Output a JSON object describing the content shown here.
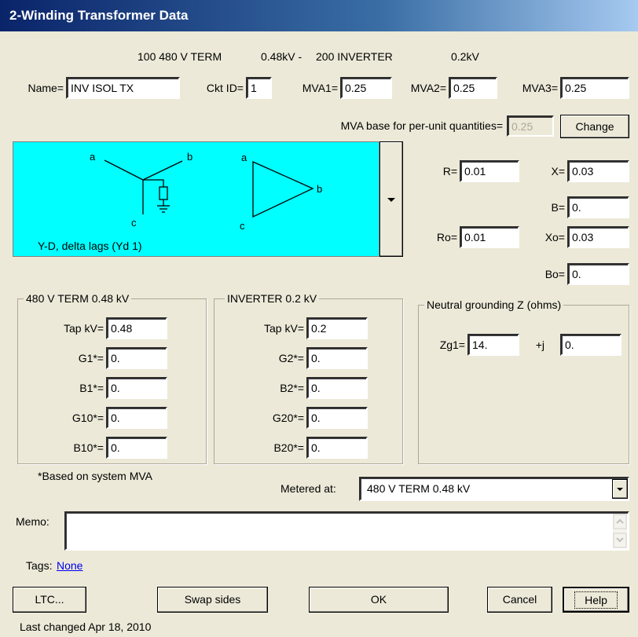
{
  "title": "2-Winding Transformer Data",
  "header": [
    "100 480 V TERM",
    "0.48kV -",
    "200 INVERTER",
    "0.2kV"
  ],
  "top_fields": [
    {
      "label": "Name=",
      "value": "INV ISOL TX"
    },
    {
      "label": "Ckt ID=",
      "value": "1"
    },
    {
      "label": "MVA1=",
      "value": "0.25"
    },
    {
      "label": "MVA2=",
      "value": "0.25"
    },
    {
      "label": "MVA3=",
      "value": "0.25"
    }
  ],
  "mva_base": {
    "label": "MVA base for per-unit quantities=",
    "value": "0.25",
    "button": "Change"
  },
  "connection": {
    "labels": [
      "a",
      "b",
      "c",
      "a",
      "b",
      "c"
    ],
    "caption": "Y-D, delta lags (Yd 1)"
  },
  "impedance": [
    {
      "label": "R=",
      "value": "0.01"
    },
    {
      "label": "X=",
      "value": "0.03"
    },
    {
      "label": "B=",
      "value": "0."
    },
    {
      "label": "Ro=",
      "value": "0.01"
    },
    {
      "label": "Xo=",
      "value": "0.03"
    },
    {
      "label": "Bo=",
      "value": "0."
    }
  ],
  "side1": {
    "title": "480 V TERM  0.48 kV",
    "fields": [
      {
        "label": "Tap kV=",
        "value": "0.48"
      },
      {
        "label": "G1*=",
        "value": "0."
      },
      {
        "label": "B1*=",
        "value": "0."
      },
      {
        "label": "G10*=",
        "value": "0."
      },
      {
        "label": "B10*=",
        "value": "0."
      }
    ]
  },
  "side2": {
    "title": "INVERTER    0.2  kV",
    "fields": [
      {
        "label": "Tap kV=",
        "value": "0.2"
      },
      {
        "label": "G2*=",
        "value": "0."
      },
      {
        "label": "B2*=",
        "value": "0."
      },
      {
        "label": "G20*=",
        "value": "0."
      },
      {
        "label": "B20*=",
        "value": "0."
      }
    ]
  },
  "grounding": {
    "title": "Neutral grounding Z (ohms)",
    "fields": [
      {
        "label": "Zg1=",
        "value": "14."
      },
      {
        "label": "+j",
        "value": "0."
      }
    ]
  },
  "note": "*Based on system MVA",
  "metered": {
    "label": "Metered at:",
    "value": "480 V TERM   0.48 kV"
  },
  "memo": {
    "label": "Memo:"
  },
  "tags": {
    "label": "Tags:",
    "value": "None"
  },
  "buttons": [
    "LTC...",
    "Swap sides",
    "OK",
    "Cancel",
    "Help"
  ],
  "footer": "Last changed Apr 18, 2010"
}
